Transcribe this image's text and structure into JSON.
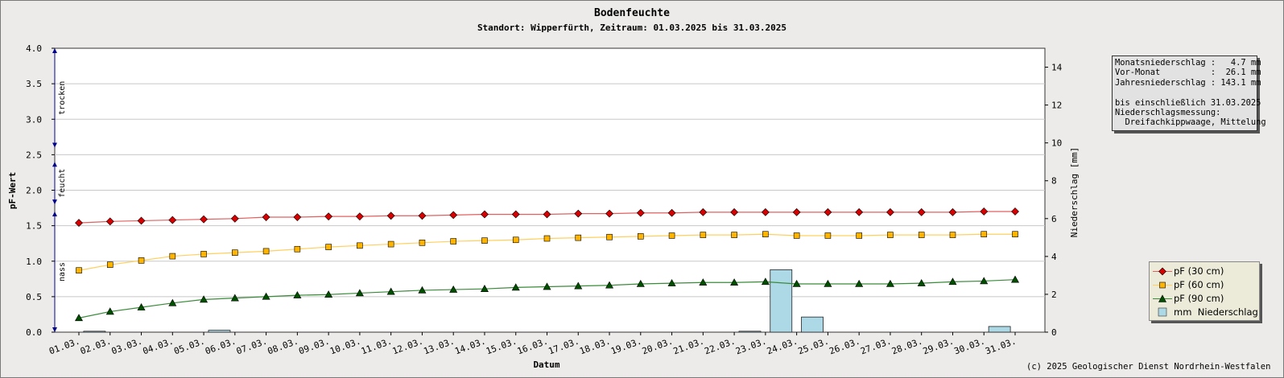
{
  "chart_data": {
    "type": "line",
    "title": "Bodenfeuchte",
    "subtitle": "Standort: Wipperfürth, Zeitraum: 01.03.2025 bis 31.03.2025",
    "xlabel": "Datum",
    "ylabel": "pF-Wert",
    "y2label": "Niederschlag [mm]",
    "ylim": [
      0,
      4
    ],
    "y2lim": [
      0,
      15
    ],
    "y_ticks": [
      "0.0",
      "0.5",
      "1.0",
      "1.5",
      "2.0",
      "2.5",
      "3.0",
      "3.5",
      "4.0"
    ],
    "y2_ticks": [
      "0",
      "2",
      "4",
      "6",
      "8",
      "10",
      "12",
      "14"
    ],
    "grid": true,
    "legend_position": "bottom-right",
    "categories": [
      "01.03.",
      "02.03.",
      "03.03.",
      "04.03.",
      "05.03.",
      "06.03.",
      "07.03.",
      "08.03.",
      "09.03.",
      "10.03.",
      "11.03.",
      "12.03.",
      "13.03.",
      "14.03.",
      "15.03.",
      "16.03.",
      "17.03.",
      "18.03.",
      "19.03.",
      "20.03.",
      "21.03.",
      "22.03.",
      "23.03.",
      "24.03.",
      "25.03.",
      "26.03.",
      "27.03.",
      "28.03.",
      "29.03.",
      "30.03.",
      "31.03."
    ],
    "series": [
      {
        "name": "pF (30 cm)",
        "marker": "diamond",
        "color": "#d80000",
        "line_color": "#e06060",
        "values": [
          1.54,
          1.56,
          1.57,
          1.58,
          1.59,
          1.6,
          1.62,
          1.62,
          1.63,
          1.63,
          1.64,
          1.64,
          1.65,
          1.66,
          1.66,
          1.66,
          1.67,
          1.67,
          1.68,
          1.68,
          1.69,
          1.69,
          1.69,
          1.69,
          1.69,
          1.69,
          1.69,
          1.69,
          1.69,
          1.7,
          1.7
        ]
      },
      {
        "name": "pF (60 cm)",
        "marker": "square",
        "color": "#ffb400",
        "line_color": "#ffd060",
        "values": [
          0.87,
          0.95,
          1.01,
          1.07,
          1.1,
          1.12,
          1.14,
          1.17,
          1.2,
          1.22,
          1.24,
          1.26,
          1.28,
          1.29,
          1.3,
          1.32,
          1.33,
          1.34,
          1.35,
          1.36,
          1.37,
          1.37,
          1.38,
          1.36,
          1.36,
          1.36,
          1.37,
          1.37,
          1.37,
          1.38,
          1.38
        ]
      },
      {
        "name": "pF (90 cm)",
        "marker": "triangle",
        "color": "#005000",
        "line_color": "#3a8a3a",
        "values": [
          0.2,
          0.29,
          0.35,
          0.41,
          0.46,
          0.48,
          0.5,
          0.52,
          0.53,
          0.55,
          0.57,
          0.59,
          0.6,
          0.61,
          0.63,
          0.64,
          0.65,
          0.66,
          0.68,
          0.69,
          0.7,
          0.7,
          0.71,
          0.68,
          0.68,
          0.68,
          0.68,
          0.69,
          0.71,
          0.72,
          0.74
        ]
      },
      {
        "name": "mm  Niederschlag",
        "marker": "bar",
        "color": "#add8e6",
        "values": [
          0.05,
          0,
          0,
          0,
          0.1,
          0,
          0,
          0,
          0,
          0,
          0,
          0,
          0,
          0,
          0,
          0,
          0,
          0,
          0,
          0,
          0,
          0.05,
          3.3,
          0.8,
          0,
          0,
          0,
          0,
          0,
          0.3,
          0
        ]
      }
    ],
    "zones": [
      {
        "label": "trocken",
        "from": 2.6,
        "to": 4.0
      },
      {
        "label": "feucht",
        "from": 1.8,
        "to": 2.4
      },
      {
        "label": "nass",
        "from": 0.0,
        "to": 1.7
      }
    ]
  },
  "info": {
    "monat_label": "Monatsniederschlag :",
    "monat_value": "4.7 mm",
    "vormonat_label": "Vor-Monat          :",
    "vormonat_value": "26.1 mm",
    "jahr_label": "Jahresniederschlag :",
    "jahr_value": "143.1 mm",
    "bis_text": "bis einschließlich 31.03.2025",
    "messung_label": "Niederschlagsmessung:",
    "messung_value": "  Dreifachkippwaage, Mittelung"
  },
  "copyright": "(c) 2025 Geologischer Dienst Nordrhein-Westfalen"
}
